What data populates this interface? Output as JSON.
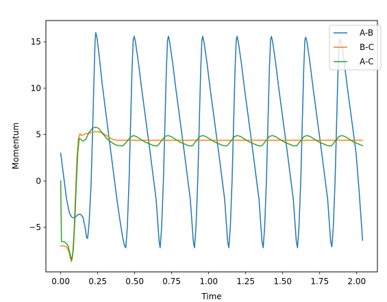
{
  "chart_data": {
    "type": "line",
    "title": "",
    "xlabel": "Time",
    "ylabel": "Momentum",
    "xlim": [
      -0.1,
      2.14
    ],
    "ylim": [
      -9.8,
      17.3
    ],
    "xticks": [
      0.0,
      0.25,
      0.5,
      0.75,
      1.0,
      1.25,
      1.5,
      1.75,
      2.0
    ],
    "xtick_labels": [
      "0.00",
      "0.25",
      "0.50",
      "0.75",
      "1.00",
      "1.25",
      "1.50",
      "1.75",
      "2.00"
    ],
    "yticks": [
      -5,
      0,
      5,
      10,
      15
    ],
    "ytick_labels": [
      "−5",
      "0",
      "5",
      "10",
      "15"
    ],
    "grid": false,
    "legend_position": "top-right",
    "series": [
      {
        "name": "A-B",
        "color": "#1f77b4",
        "points": [
          [
            0.0,
            3.0
          ],
          [
            0.02,
            0.5
          ],
          [
            0.04,
            -2.0
          ],
          [
            0.06,
            -3.5
          ],
          [
            0.075,
            -3.9
          ],
          [
            0.09,
            -4.0
          ],
          [
            0.105,
            -3.8
          ],
          [
            0.12,
            -3.6
          ],
          [
            0.135,
            -3.6
          ],
          [
            0.15,
            -3.9
          ],
          [
            0.165,
            -5.0
          ],
          [
            0.175,
            -6.1
          ],
          [
            0.182,
            -6.2
          ],
          [
            0.192,
            -4.5
          ],
          [
            0.205,
            -0.5
          ],
          [
            0.215,
            5.0
          ],
          [
            0.225,
            11.0
          ],
          [
            0.232,
            15.0
          ],
          [
            0.237,
            16.0
          ],
          [
            0.245,
            15.5
          ],
          [
            0.26,
            13.5
          ],
          [
            0.28,
            10.5
          ],
          [
            0.3,
            8.0
          ],
          [
            0.32,
            5.5
          ],
          [
            0.34,
            3.0
          ],
          [
            0.36,
            0.5
          ],
          [
            0.38,
            -2.0
          ],
          [
            0.4,
            -4.2
          ],
          [
            0.42,
            -6.2
          ],
          [
            0.432,
            -7.0
          ],
          [
            0.44,
            -7.2
          ],
          [
            0.45,
            -5.0
          ],
          [
            0.462,
            0.0
          ],
          [
            0.472,
            6.0
          ],
          [
            0.482,
            12.0
          ],
          [
            0.49,
            15.2
          ],
          [
            0.497,
            15.6
          ],
          [
            0.505,
            15.0
          ],
          [
            0.525,
            12.8
          ],
          [
            0.545,
            10.2
          ],
          [
            0.565,
            7.8
          ],
          [
            0.585,
            5.4
          ],
          [
            0.605,
            3.0
          ],
          [
            0.625,
            0.5
          ],
          [
            0.645,
            -2.0
          ],
          [
            0.665,
            -6.5
          ],
          [
            0.672,
            -7.2
          ],
          [
            0.682,
            -5.0
          ],
          [
            0.694,
            0.0
          ],
          [
            0.704,
            6.0
          ],
          [
            0.714,
            12.0
          ],
          [
            0.722,
            15.2
          ],
          [
            0.728,
            15.6
          ],
          [
            0.736,
            15.0
          ],
          [
            0.756,
            12.8
          ],
          [
            0.776,
            10.2
          ],
          [
            0.796,
            7.8
          ],
          [
            0.816,
            5.4
          ],
          [
            0.836,
            3.0
          ],
          [
            0.856,
            0.5
          ],
          [
            0.876,
            -2.0
          ],
          [
            0.896,
            -6.5
          ],
          [
            0.904,
            -7.2
          ],
          [
            0.914,
            -5.0
          ],
          [
            0.926,
            0.0
          ],
          [
            0.936,
            6.0
          ],
          [
            0.946,
            12.0
          ],
          [
            0.954,
            15.2
          ],
          [
            0.96,
            15.6
          ],
          [
            0.968,
            15.0
          ],
          [
            0.988,
            12.8
          ],
          [
            1.008,
            10.2
          ],
          [
            1.028,
            7.8
          ],
          [
            1.048,
            5.4
          ],
          [
            1.068,
            3.0
          ],
          [
            1.088,
            0.5
          ],
          [
            1.108,
            -2.0
          ],
          [
            1.128,
            -6.5
          ],
          [
            1.136,
            -7.2
          ],
          [
            1.146,
            -5.0
          ],
          [
            1.158,
            0.0
          ],
          [
            1.168,
            6.0
          ],
          [
            1.178,
            12.0
          ],
          [
            1.186,
            15.2
          ],
          [
            1.192,
            15.6
          ],
          [
            1.2,
            15.0
          ],
          [
            1.22,
            12.8
          ],
          [
            1.24,
            10.2
          ],
          [
            1.26,
            7.8
          ],
          [
            1.28,
            5.4
          ],
          [
            1.3,
            3.0
          ],
          [
            1.32,
            0.5
          ],
          [
            1.34,
            -2.0
          ],
          [
            1.36,
            -6.5
          ],
          [
            1.368,
            -7.2
          ],
          [
            1.378,
            -5.0
          ],
          [
            1.39,
            0.0
          ],
          [
            1.4,
            6.0
          ],
          [
            1.41,
            12.0
          ],
          [
            1.418,
            15.2
          ],
          [
            1.424,
            15.6
          ],
          [
            1.432,
            15.0
          ],
          [
            1.452,
            12.8
          ],
          [
            1.472,
            10.2
          ],
          [
            1.492,
            7.8
          ],
          [
            1.512,
            5.4
          ],
          [
            1.532,
            3.0
          ],
          [
            1.552,
            0.5
          ],
          [
            1.572,
            -2.0
          ],
          [
            1.592,
            -6.5
          ],
          [
            1.6,
            -7.2
          ],
          [
            1.61,
            -5.0
          ],
          [
            1.622,
            0.0
          ],
          [
            1.632,
            6.0
          ],
          [
            1.642,
            12.0
          ],
          [
            1.65,
            15.2
          ],
          [
            1.656,
            15.5
          ],
          [
            1.664,
            15.0
          ],
          [
            1.684,
            12.8
          ],
          [
            1.704,
            10.2
          ],
          [
            1.724,
            7.8
          ],
          [
            1.744,
            5.4
          ],
          [
            1.764,
            3.0
          ],
          [
            1.784,
            0.5
          ],
          [
            1.804,
            -2.0
          ],
          [
            1.824,
            -6.5
          ],
          [
            1.832,
            -7.1
          ],
          [
            1.842,
            -5.0
          ],
          [
            1.854,
            0.0
          ],
          [
            1.864,
            6.0
          ],
          [
            1.874,
            12.0
          ],
          [
            1.882,
            15.0
          ],
          [
            1.888,
            15.3
          ],
          [
            1.896,
            15.0
          ],
          [
            1.916,
            12.8
          ],
          [
            1.936,
            10.2
          ],
          [
            1.956,
            7.8
          ],
          [
            1.976,
            5.4
          ],
          [
            1.996,
            3.0
          ],
          [
            2.016,
            -1.0
          ],
          [
            2.04,
            -6.4
          ]
        ]
      },
      {
        "name": "B-C",
        "color": "#ff7f0e",
        "points": [
          [
            0.0,
            -7.0
          ],
          [
            0.02,
            -7.0
          ],
          [
            0.04,
            -7.1
          ],
          [
            0.055,
            -7.6
          ],
          [
            0.065,
            -8.3
          ],
          [
            0.072,
            -8.7
          ],
          [
            0.08,
            -8.2
          ],
          [
            0.09,
            -5.5
          ],
          [
            0.1,
            -1.5
          ],
          [
            0.11,
            2.5
          ],
          [
            0.12,
            4.6
          ],
          [
            0.13,
            5.1
          ],
          [
            0.14,
            4.9
          ],
          [
            0.155,
            5.0
          ],
          [
            0.175,
            5.1
          ],
          [
            0.2,
            5.2
          ],
          [
            0.23,
            5.3
          ],
          [
            0.26,
            5.3
          ],
          [
            0.29,
            5.1
          ],
          [
            0.32,
            4.8
          ],
          [
            0.35,
            4.5
          ],
          [
            0.38,
            4.4
          ],
          [
            0.42,
            4.4
          ],
          [
            0.6,
            4.4
          ],
          [
            0.9,
            4.4
          ],
          [
            1.2,
            4.4
          ],
          [
            1.5,
            4.4
          ],
          [
            1.8,
            4.4
          ],
          [
            2.04,
            4.4
          ]
        ]
      },
      {
        "name": "A-C",
        "color": "#2ca02c",
        "points": [
          [
            0.0,
            0.0
          ],
          [
            0.005,
            -6.5
          ],
          [
            0.03,
            -6.6
          ],
          [
            0.05,
            -7.0
          ],
          [
            0.065,
            -8.0
          ],
          [
            0.075,
            -8.5
          ],
          [
            0.085,
            -7.5
          ],
          [
            0.095,
            -4.5
          ],
          [
            0.105,
            -0.5
          ],
          [
            0.115,
            3.0
          ],
          [
            0.125,
            4.6
          ],
          [
            0.135,
            4.5
          ],
          [
            0.15,
            4.3
          ],
          [
            0.17,
            4.5
          ],
          [
            0.19,
            5.2
          ],
          [
            0.215,
            5.7
          ],
          [
            0.235,
            5.8
          ],
          [
            0.255,
            5.7
          ],
          [
            0.28,
            5.2
          ],
          [
            0.31,
            4.6
          ],
          [
            0.34,
            4.2
          ],
          [
            0.37,
            3.9
          ],
          [
            0.4,
            3.8
          ],
          [
            0.42,
            3.8
          ],
          [
            0.445,
            4.2
          ],
          [
            0.47,
            4.7
          ],
          [
            0.49,
            4.9
          ],
          [
            0.51,
            4.8
          ],
          [
            0.54,
            4.5
          ],
          [
            0.57,
            4.2
          ],
          [
            0.6,
            4.0
          ],
          [
            0.63,
            3.8
          ],
          [
            0.655,
            3.8
          ],
          [
            0.68,
            4.3
          ],
          [
            0.705,
            4.8
          ],
          [
            0.725,
            4.9
          ],
          [
            0.745,
            4.8
          ],
          [
            0.775,
            4.5
          ],
          [
            0.805,
            4.2
          ],
          [
            0.835,
            4.0
          ],
          [
            0.865,
            3.8
          ],
          [
            0.89,
            3.8
          ],
          [
            0.915,
            4.3
          ],
          [
            0.94,
            4.8
          ],
          [
            0.96,
            4.9
          ],
          [
            0.98,
            4.8
          ],
          [
            1.01,
            4.5
          ],
          [
            1.04,
            4.2
          ],
          [
            1.07,
            4.0
          ],
          [
            1.1,
            3.8
          ],
          [
            1.125,
            3.8
          ],
          [
            1.15,
            4.3
          ],
          [
            1.175,
            4.8
          ],
          [
            1.195,
            4.9
          ],
          [
            1.215,
            4.8
          ],
          [
            1.245,
            4.5
          ],
          [
            1.275,
            4.2
          ],
          [
            1.305,
            4.0
          ],
          [
            1.335,
            3.8
          ],
          [
            1.36,
            3.8
          ],
          [
            1.385,
            4.3
          ],
          [
            1.41,
            4.8
          ],
          [
            1.43,
            4.9
          ],
          [
            1.45,
            4.8
          ],
          [
            1.48,
            4.5
          ],
          [
            1.51,
            4.2
          ],
          [
            1.54,
            4.0
          ],
          [
            1.57,
            3.8
          ],
          [
            1.595,
            3.8
          ],
          [
            1.62,
            4.3
          ],
          [
            1.645,
            4.8
          ],
          [
            1.665,
            4.9
          ],
          [
            1.685,
            4.8
          ],
          [
            1.715,
            4.5
          ],
          [
            1.745,
            4.2
          ],
          [
            1.775,
            4.0
          ],
          [
            1.805,
            3.8
          ],
          [
            1.83,
            3.8
          ],
          [
            1.855,
            4.3
          ],
          [
            1.88,
            4.8
          ],
          [
            1.9,
            4.9
          ],
          [
            1.92,
            4.8
          ],
          [
            1.95,
            4.5
          ],
          [
            1.98,
            4.2
          ],
          [
            2.01,
            4.0
          ],
          [
            2.04,
            3.8
          ]
        ]
      }
    ]
  }
}
